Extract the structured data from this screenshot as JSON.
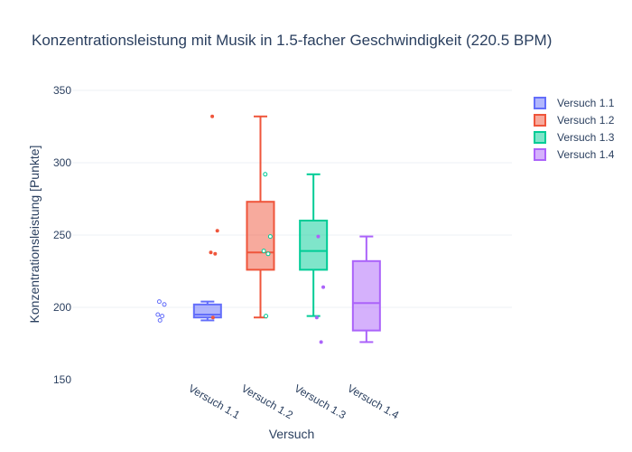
{
  "chart_data": {
    "type": "box",
    "title": "Konzentrationsleistung mit Musik in 1.5-facher Geschwindigkeit (220.5 BPM)",
    "xlabel": "Versuch",
    "ylabel": "Konzentrationsleistung [Punkte]",
    "ylim": [
      150,
      350
    ],
    "yticks": [
      150,
      200,
      250,
      300,
      350
    ],
    "grid": true,
    "legend_position": "top-right",
    "categories": [
      "Versuch 1.1",
      "Versuch 1.2",
      "Versuch 1.3",
      "Versuch 1.4"
    ],
    "series": [
      {
        "name": "Versuch 1.1",
        "color": "#636efa",
        "fill": "rgba(99,110,250,0.5)",
        "point_style": "open",
        "min": 191,
        "q1": 193,
        "median": 195,
        "q3": 202,
        "max": 204,
        "points": [
          204,
          202,
          195,
          194,
          191
        ]
      },
      {
        "name": "Versuch 1.2",
        "color": "#ef553b",
        "fill": "rgba(239,85,59,0.5)",
        "point_style": "filled",
        "min": 193,
        "q1": 226,
        "median": 238,
        "q3": 273,
        "max": 332,
        "points": [
          332,
          253,
          238,
          237,
          193
        ]
      },
      {
        "name": "Versuch 1.3",
        "color": "#00cc96",
        "fill": "rgba(0,204,150,0.5)",
        "point_style": "open",
        "min": 194,
        "q1": 226,
        "median": 239,
        "q3": 260,
        "max": 292,
        "points": [
          292,
          249,
          239,
          237,
          194
        ]
      },
      {
        "name": "Versuch 1.4",
        "color": "#ab63fa",
        "fill": "rgba(171,99,250,0.5)",
        "point_style": "filled",
        "min": 176,
        "q1": 184,
        "median": 203,
        "q3": 232,
        "max": 249,
        "points": [
          249,
          214,
          193,
          176
        ]
      }
    ]
  }
}
